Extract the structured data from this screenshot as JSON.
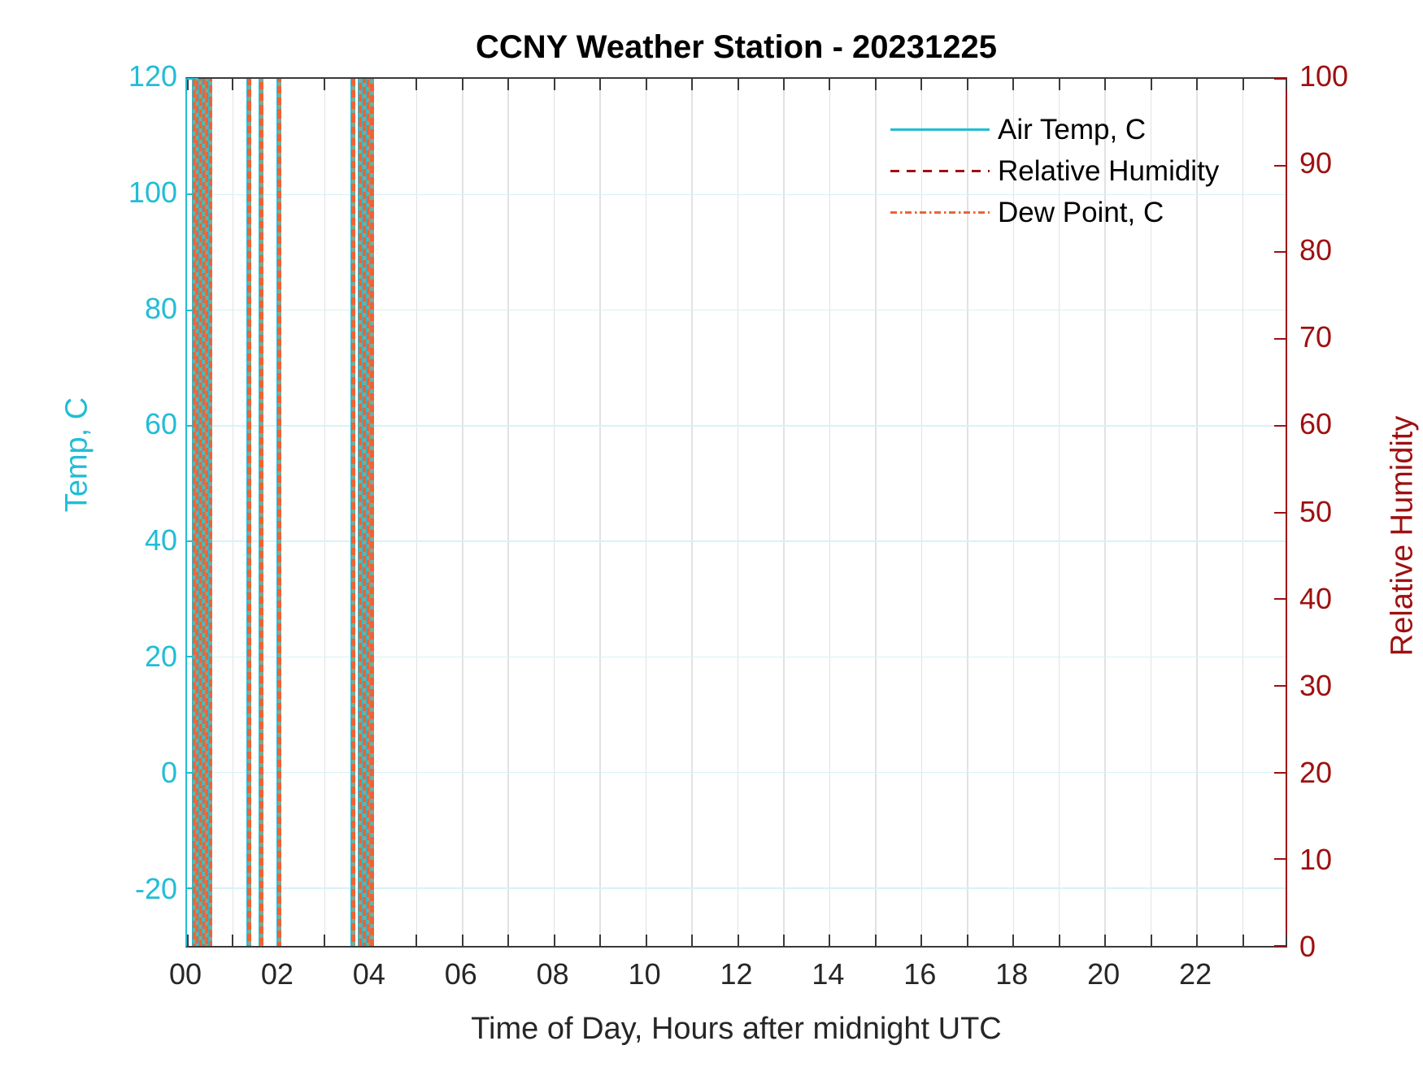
{
  "title": "CCNY Weather Station - 20231225",
  "x_axis": {
    "label": "Time of Day, Hours after midnight UTC",
    "range_hours": [
      0,
      24
    ],
    "labeled_ticks": [
      {
        "hour": 0,
        "label": "00"
      },
      {
        "hour": 2,
        "label": "02"
      },
      {
        "hour": 4,
        "label": "04"
      },
      {
        "hour": 6,
        "label": "06"
      },
      {
        "hour": 8,
        "label": "08"
      },
      {
        "hour": 10,
        "label": "10"
      },
      {
        "hour": 12,
        "label": "12"
      },
      {
        "hour": 14,
        "label": "14"
      },
      {
        "hour": 16,
        "label": "16"
      },
      {
        "hour": 18,
        "label": "18"
      },
      {
        "hour": 20,
        "label": "20"
      },
      {
        "hour": 22,
        "label": "22"
      }
    ],
    "minor_tick_step_hours": 1,
    "gridline_step_hours": 1,
    "tick_color": "#3a3a3a",
    "label_color": "#262626"
  },
  "y_axis_left": {
    "label": "Temp, C",
    "color": "#21BDD6",
    "range": [
      -30,
      120
    ],
    "ticks": [
      -20,
      0,
      20,
      40,
      60,
      80,
      100,
      120
    ],
    "gridline_color": "#d9f1f7"
  },
  "y_axis_right": {
    "label": "Relative Humidity",
    "color": "#9E1010",
    "range": [
      0,
      100
    ],
    "ticks": [
      0,
      10,
      20,
      30,
      40,
      50,
      60,
      70,
      80,
      90,
      100
    ]
  },
  "legend": {
    "entries": [
      {
        "label": "Air Temp, C",
        "color": "#21BDD6",
        "line_style": "solid"
      },
      {
        "label": "Relative Humidity",
        "color": "#9E1010",
        "line_style": "dashed"
      },
      {
        "label": "Dew Point, C",
        "color": "#ED6335",
        "line_style": "dashdot"
      }
    ]
  },
  "chart_data": {
    "type": "line",
    "title": "CCNY Weather Station - 20231225",
    "xlabel": "Time of Day, Hours after midnight UTC",
    "ylabel_left": "Temp, C",
    "ylabel_right": "Relative Humidity",
    "xlim": [
      0,
      24
    ],
    "ylim_left": [
      -30,
      120
    ],
    "ylim_right": [
      0,
      100
    ],
    "grid": true,
    "legend_position": "upper right, no box",
    "series": [
      {
        "name": "Air Temp, C",
        "axis": "left",
        "style": "solid",
        "color": "#21BDD6"
      },
      {
        "name": "Relative Humidity",
        "axis": "right",
        "style": "dashed",
        "color": "#9E1010"
      },
      {
        "name": "Dew Point, C",
        "axis": "left",
        "style": "dashdot",
        "color": "#ED6335"
      }
    ],
    "note": "All three series render as full-height vertical lines confined to hours 0-4; values span the entire y-range at each event time.",
    "vertical_line_hours": [
      0.14,
      0.21,
      0.28,
      0.35,
      0.42,
      0.49,
      1.33,
      1.6,
      1.99,
      3.6,
      3.76,
      3.85,
      3.93,
      4.01
    ]
  }
}
